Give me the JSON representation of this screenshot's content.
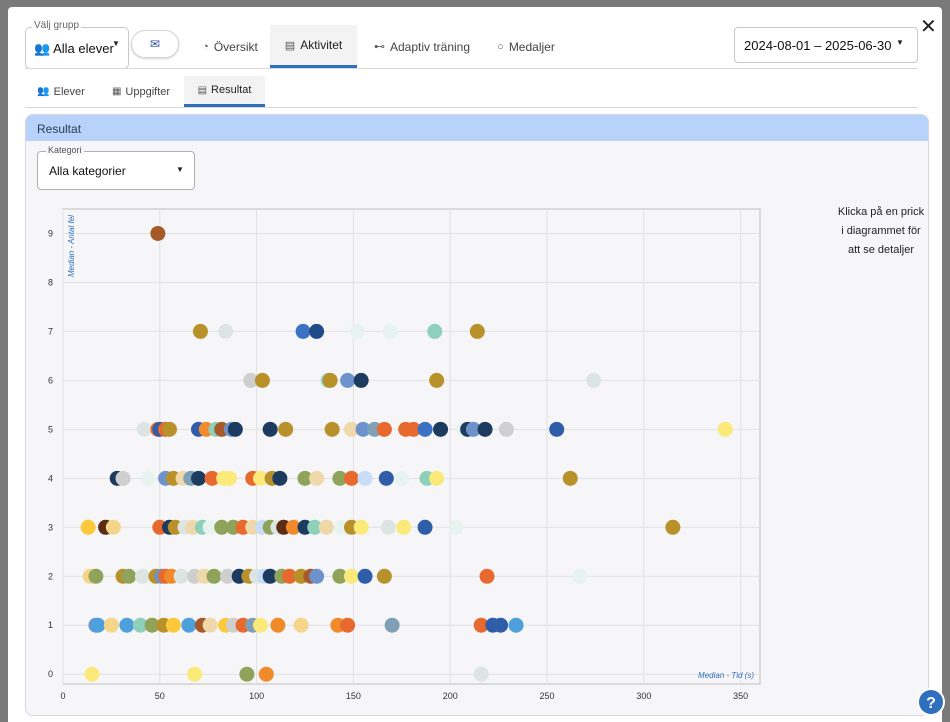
{
  "header": {
    "group_legend": "Välj grupp",
    "group_value": "Alla elever",
    "tabs": [
      {
        "label": "Översikt",
        "icon": "gauge-icon",
        "active": false
      },
      {
        "label": "Aktivitet",
        "icon": "chart-icon",
        "active": true
      },
      {
        "label": "Adaptiv träning",
        "icon": "dumbbell-icon",
        "active": false
      },
      {
        "label": "Medaljer",
        "icon": "medal-icon",
        "active": false
      }
    ],
    "date_range": "2024-08-01 – 2025-06-30"
  },
  "subtabs": [
    {
      "label": "Elever",
      "icon": "users-icon",
      "active": false
    },
    {
      "label": "Uppgifter",
      "icon": "grid-icon",
      "active": false
    },
    {
      "label": "Resultat",
      "icon": "list-icon",
      "active": true
    }
  ],
  "panel": {
    "title": "Resultat",
    "category_legend": "Kategori",
    "category_value": "Alla kategorier",
    "hint": "Klicka på en prick i diagrammet för att se detaljer"
  },
  "chart_data": {
    "type": "scatter",
    "xlabel": "Median - Tid (s)",
    "ylabel": "Median - Antal fel",
    "xlim": [
      0,
      360
    ],
    "ylim": [
      -0.2,
      9.5
    ],
    "xticks": [
      0,
      50,
      100,
      150,
      200,
      250,
      300,
      350
    ],
    "yticks": [
      0,
      1,
      2,
      3,
      4,
      5,
      6,
      7,
      8,
      9
    ],
    "grid": true,
    "points": [
      {
        "x": 49,
        "y": 9,
        "c": "#a65a2a"
      },
      {
        "x": 71,
        "y": 7,
        "c": "#b8912a"
      },
      {
        "x": 84,
        "y": 7,
        "c": "#dde5e3"
      },
      {
        "x": 124,
        "y": 7,
        "c": "#3c72c4"
      },
      {
        "x": 131,
        "y": 7,
        "c": "#1f4b88"
      },
      {
        "x": 152,
        "y": 7,
        "c": "#e6f3ee"
      },
      {
        "x": 169,
        "y": 7,
        "c": "#e6f3ee"
      },
      {
        "x": 192,
        "y": 7,
        "c": "#8fd0bb"
      },
      {
        "x": 214,
        "y": 7,
        "c": "#b8912a"
      },
      {
        "x": 97,
        "y": 6,
        "c": "#cfcfcf"
      },
      {
        "x": 103,
        "y": 6,
        "c": "#b8912a"
      },
      {
        "x": 137,
        "y": 6,
        "c": "#8fd0bb"
      },
      {
        "x": 138,
        "y": 6,
        "c": "#b8912a"
      },
      {
        "x": 147,
        "y": 6,
        "c": "#6e93cc"
      },
      {
        "x": 154,
        "y": 6,
        "c": "#1c3b5e"
      },
      {
        "x": 193,
        "y": 6,
        "c": "#b8912a"
      },
      {
        "x": 274,
        "y": 6,
        "c": "#dde5e3"
      },
      {
        "x": 42,
        "y": 5,
        "c": "#dde5e3"
      },
      {
        "x": 49,
        "y": 5,
        "c": "#e8692d"
      },
      {
        "x": 50,
        "y": 5,
        "c": "#2f5da8"
      },
      {
        "x": 53,
        "y": 5,
        "c": "#e8692d"
      },
      {
        "x": 55,
        "y": 5,
        "c": "#b8912a"
      },
      {
        "x": 70,
        "y": 5,
        "c": "#2f5da8"
      },
      {
        "x": 74,
        "y": 5,
        "c": "#f08a2a"
      },
      {
        "x": 79,
        "y": 5,
        "c": "#8fd0bb"
      },
      {
        "x": 82,
        "y": 5,
        "c": "#a65a2a"
      },
      {
        "x": 87,
        "y": 5,
        "c": "#6e93cc"
      },
      {
        "x": 89,
        "y": 5,
        "c": "#1c3b5e"
      },
      {
        "x": 107,
        "y": 5,
        "c": "#1c3b5e"
      },
      {
        "x": 115,
        "y": 5,
        "c": "#b8912a"
      },
      {
        "x": 139,
        "y": 5,
        "c": "#b8912a"
      },
      {
        "x": 149,
        "y": 5,
        "c": "#efd8a9"
      },
      {
        "x": 155,
        "y": 5,
        "c": "#6e93cc"
      },
      {
        "x": 161,
        "y": 5,
        "c": "#7fa0b6"
      },
      {
        "x": 166,
        "y": 5,
        "c": "#e8692d"
      },
      {
        "x": 177,
        "y": 5,
        "c": "#e8692d"
      },
      {
        "x": 181,
        "y": 5,
        "c": "#e8692d"
      },
      {
        "x": 187,
        "y": 5,
        "c": "#3c72c4"
      },
      {
        "x": 195,
        "y": 5,
        "c": "#1c3b5e"
      },
      {
        "x": 207,
        "y": 5,
        "c": "#e6f3ee"
      },
      {
        "x": 209,
        "y": 5,
        "c": "#1c3b5e"
      },
      {
        "x": 212,
        "y": 5,
        "c": "#6e93cc"
      },
      {
        "x": 218,
        "y": 5,
        "c": "#1c3b5e"
      },
      {
        "x": 229,
        "y": 5,
        "c": "#cfcfcf"
      },
      {
        "x": 255,
        "y": 5,
        "c": "#2f5da8"
      },
      {
        "x": 342,
        "y": 5,
        "c": "#fbe97a"
      },
      {
        "x": 28,
        "y": 4,
        "c": "#1c3b5e"
      },
      {
        "x": 31,
        "y": 4,
        "c": "#cfcfcf"
      },
      {
        "x": 44,
        "y": 4,
        "c": "#e6f3ee"
      },
      {
        "x": 53,
        "y": 4,
        "c": "#6e93cc"
      },
      {
        "x": 57,
        "y": 4,
        "c": "#b8912a"
      },
      {
        "x": 62,
        "y": 4,
        "c": "#efd8a9"
      },
      {
        "x": 66,
        "y": 4,
        "c": "#7fa0b6"
      },
      {
        "x": 70,
        "y": 4,
        "c": "#1c3b5e"
      },
      {
        "x": 77,
        "y": 4,
        "c": "#e8692d"
      },
      {
        "x": 83,
        "y": 4,
        "c": "#fbe97a"
      },
      {
        "x": 86,
        "y": 4,
        "c": "#fbe97a"
      },
      {
        "x": 98,
        "y": 4,
        "c": "#e8692d"
      },
      {
        "x": 102,
        "y": 4,
        "c": "#fbe97a"
      },
      {
        "x": 108,
        "y": 4,
        "c": "#b8912a"
      },
      {
        "x": 112,
        "y": 4,
        "c": "#1c3b5e"
      },
      {
        "x": 125,
        "y": 4,
        "c": "#8fa35a"
      },
      {
        "x": 131,
        "y": 4,
        "c": "#efd8a9"
      },
      {
        "x": 143,
        "y": 4,
        "c": "#8fa35a"
      },
      {
        "x": 149,
        "y": 4,
        "c": "#e8692d"
      },
      {
        "x": 156,
        "y": 4,
        "c": "#c8ddf8"
      },
      {
        "x": 167,
        "y": 4,
        "c": "#2f5da8"
      },
      {
        "x": 175,
        "y": 4,
        "c": "#e6f3ee"
      },
      {
        "x": 188,
        "y": 4,
        "c": "#8fd0bb"
      },
      {
        "x": 193,
        "y": 4,
        "c": "#fbe97a"
      },
      {
        "x": 262,
        "y": 4,
        "c": "#b8912a"
      },
      {
        "x": 13,
        "y": 3,
        "c": "#fbc93a"
      },
      {
        "x": 22,
        "y": 3,
        "c": "#fbe97a"
      },
      {
        "x": 22,
        "y": 3,
        "c": "#5c2d14"
      },
      {
        "x": 26,
        "y": 3,
        "c": "#f4d58a"
      },
      {
        "x": 50,
        "y": 3,
        "c": "#e8692d"
      },
      {
        "x": 55,
        "y": 3,
        "c": "#1c3b5e"
      },
      {
        "x": 58,
        "y": 3,
        "c": "#b8912a"
      },
      {
        "x": 63,
        "y": 3,
        "c": "#dde5e3"
      },
      {
        "x": 67,
        "y": 3,
        "c": "#efd8a9"
      },
      {
        "x": 72,
        "y": 3,
        "c": "#8fd0bb"
      },
      {
        "x": 76,
        "y": 3,
        "c": "#e6f3ee"
      },
      {
        "x": 82,
        "y": 3,
        "c": "#8fa35a"
      },
      {
        "x": 88,
        "y": 3,
        "c": "#8fa35a"
      },
      {
        "x": 93,
        "y": 3,
        "c": "#e8692d"
      },
      {
        "x": 98,
        "y": 3,
        "c": "#efd8a9"
      },
      {
        "x": 103,
        "y": 3,
        "c": "#c8ddf8"
      },
      {
        "x": 107,
        "y": 3,
        "c": "#8fa35a"
      },
      {
        "x": 111,
        "y": 3,
        "c": "#dde5e3"
      },
      {
        "x": 114,
        "y": 3,
        "c": "#5c2d14"
      },
      {
        "x": 119,
        "y": 3,
        "c": "#f08a2a"
      },
      {
        "x": 125,
        "y": 3,
        "c": "#1c3b5e"
      },
      {
        "x": 130,
        "y": 3,
        "c": "#8fd0bb"
      },
      {
        "x": 136,
        "y": 3,
        "c": "#efd8a9"
      },
      {
        "x": 144,
        "y": 3,
        "c": "#e6f3ee"
      },
      {
        "x": 149,
        "y": 3,
        "c": "#b8912a"
      },
      {
        "x": 154,
        "y": 3,
        "c": "#fbe97a"
      },
      {
        "x": 168,
        "y": 3,
        "c": "#dde5e3"
      },
      {
        "x": 176,
        "y": 3,
        "c": "#fbe97a"
      },
      {
        "x": 187,
        "y": 3,
        "c": "#2f5da8"
      },
      {
        "x": 203,
        "y": 3,
        "c": "#e6f3ee"
      },
      {
        "x": 315,
        "y": 3,
        "c": "#b8912a"
      },
      {
        "x": 14,
        "y": 2,
        "c": "#f4d58a"
      },
      {
        "x": 17,
        "y": 2,
        "c": "#8fa35a"
      },
      {
        "x": 31,
        "y": 2,
        "c": "#b8912a"
      },
      {
        "x": 34,
        "y": 2,
        "c": "#8fa35a"
      },
      {
        "x": 41,
        "y": 2,
        "c": "#dde5e3"
      },
      {
        "x": 48,
        "y": 2,
        "c": "#b8912a"
      },
      {
        "x": 51,
        "y": 2,
        "c": "#6e93cc"
      },
      {
        "x": 53,
        "y": 2,
        "c": "#e8692d"
      },
      {
        "x": 56,
        "y": 2,
        "c": "#f08a2a"
      },
      {
        "x": 61,
        "y": 2,
        "c": "#dde5e3"
      },
      {
        "x": 68,
        "y": 2,
        "c": "#cfcfcf"
      },
      {
        "x": 73,
        "y": 2,
        "c": "#efd8a9"
      },
      {
        "x": 78,
        "y": 2,
        "c": "#8fa35a"
      },
      {
        "x": 85,
        "y": 2,
        "c": "#cfcfcf"
      },
      {
        "x": 91,
        "y": 2,
        "c": "#1c3b5e"
      },
      {
        "x": 96,
        "y": 2,
        "c": "#b8912a"
      },
      {
        "x": 100,
        "y": 2,
        "c": "#dde5e3"
      },
      {
        "x": 104,
        "y": 2,
        "c": "#c8ddf8"
      },
      {
        "x": 107,
        "y": 2,
        "c": "#1c3b5e"
      },
      {
        "x": 113,
        "y": 2,
        "c": "#8fa35a"
      },
      {
        "x": 117,
        "y": 2,
        "c": "#e8692d"
      },
      {
        "x": 123,
        "y": 2,
        "c": "#b8912a"
      },
      {
        "x": 128,
        "y": 2,
        "c": "#a65a2a"
      },
      {
        "x": 131,
        "y": 2,
        "c": "#6e93cc"
      },
      {
        "x": 143,
        "y": 2,
        "c": "#8fa35a"
      },
      {
        "x": 149,
        "y": 2,
        "c": "#fbe97a"
      },
      {
        "x": 156,
        "y": 2,
        "c": "#2f5da8"
      },
      {
        "x": 166,
        "y": 2,
        "c": "#b8912a"
      },
      {
        "x": 219,
        "y": 2,
        "c": "#e8692d"
      },
      {
        "x": 267,
        "y": 2,
        "c": "#e6f3ee"
      },
      {
        "x": 17,
        "y": 1,
        "c": "#6e93cc"
      },
      {
        "x": 18,
        "y": 1,
        "c": "#4da0dc"
      },
      {
        "x": 25,
        "y": 1,
        "c": "#f4d58a"
      },
      {
        "x": 33,
        "y": 1,
        "c": "#4da0dc"
      },
      {
        "x": 40,
        "y": 1,
        "c": "#8fd0bb"
      },
      {
        "x": 46,
        "y": 1,
        "c": "#8fa35a"
      },
      {
        "x": 52,
        "y": 1,
        "c": "#b8912a"
      },
      {
        "x": 57,
        "y": 1,
        "c": "#fbc93a"
      },
      {
        "x": 65,
        "y": 1,
        "c": "#4da0dc"
      },
      {
        "x": 72,
        "y": 1,
        "c": "#a65a2a"
      },
      {
        "x": 76,
        "y": 1,
        "c": "#efd8a9"
      },
      {
        "x": 84,
        "y": 1,
        "c": "#fbc93a"
      },
      {
        "x": 88,
        "y": 1,
        "c": "#cfcfcf"
      },
      {
        "x": 93,
        "y": 1,
        "c": "#e8692d"
      },
      {
        "x": 98,
        "y": 1,
        "c": "#7fa0b6"
      },
      {
        "x": 102,
        "y": 1,
        "c": "#fbe97a"
      },
      {
        "x": 111,
        "y": 1,
        "c": "#f08a2a"
      },
      {
        "x": 123,
        "y": 1,
        "c": "#f4d58a"
      },
      {
        "x": 142,
        "y": 1,
        "c": "#f08a2a"
      },
      {
        "x": 147,
        "y": 1,
        "c": "#e8692d"
      },
      {
        "x": 170,
        "y": 1,
        "c": "#7fa0b6"
      },
      {
        "x": 216,
        "y": 1,
        "c": "#e8692d"
      },
      {
        "x": 222,
        "y": 1,
        "c": "#2f5da8"
      },
      {
        "x": 226,
        "y": 1,
        "c": "#2f5da8"
      },
      {
        "x": 234,
        "y": 1,
        "c": "#4da0dc"
      },
      {
        "x": 15,
        "y": 0,
        "c": "#fbe97a"
      },
      {
        "x": 68,
        "y": 0,
        "c": "#fbe97a"
      },
      {
        "x": 95,
        "y": 0,
        "c": "#8fa35a"
      },
      {
        "x": 105,
        "y": 0,
        "c": "#f08a2a"
      },
      {
        "x": 216,
        "y": 0,
        "c": "#dde5e3"
      }
    ]
  }
}
